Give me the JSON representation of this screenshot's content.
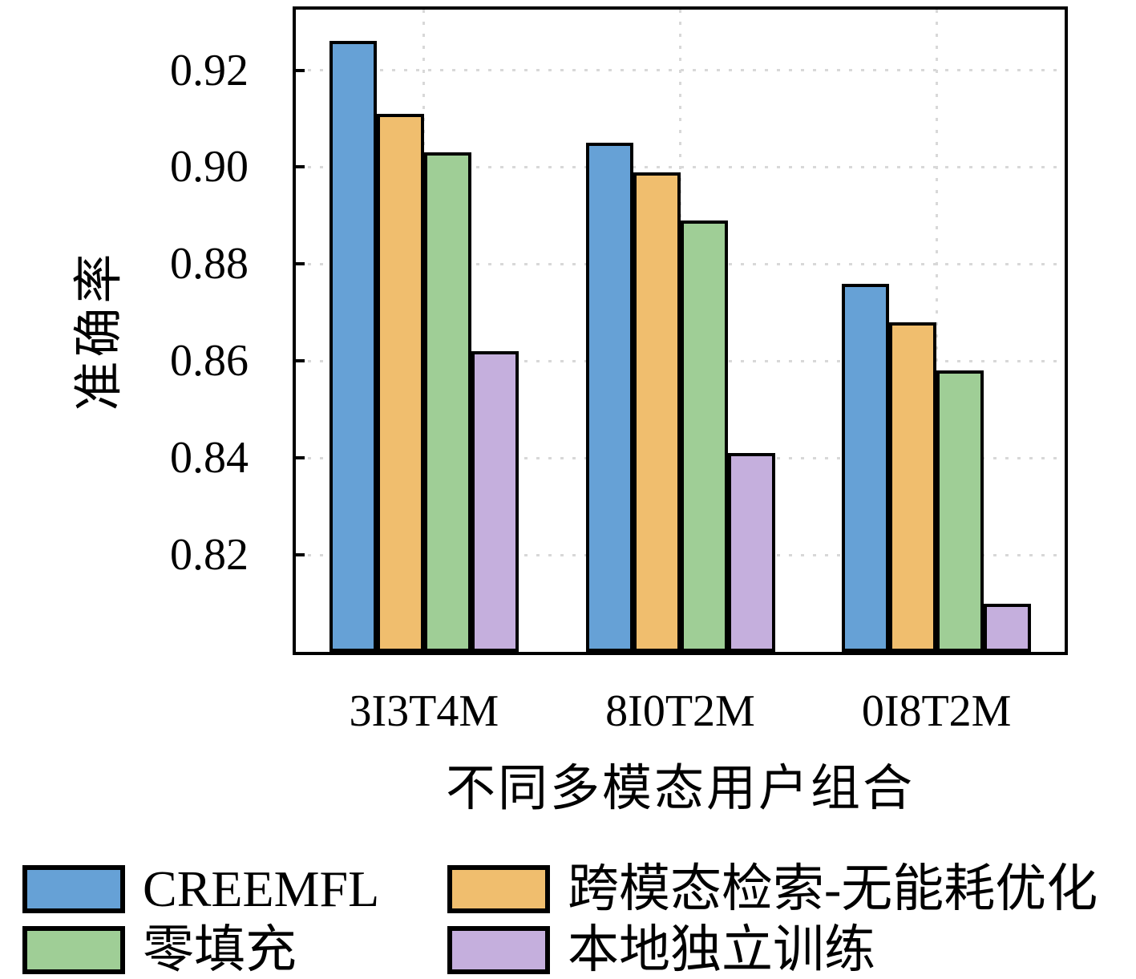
{
  "chart_data": {
    "type": "bar",
    "title": "",
    "xlabel": "不同多模态用户组合",
    "ylabel": "准确率",
    "categories": [
      "3I3T4M",
      "8I0T2M",
      "0I8T2M"
    ],
    "series": [
      {
        "name": "CREEMFL",
        "color": "#66a1d6",
        "values": [
          0.926,
          0.905,
          0.876
        ]
      },
      {
        "name": "跨模态检索-无能耗优化",
        "color": "#f0be6e",
        "values": [
          0.911,
          0.899,
          0.868
        ]
      },
      {
        "name": "零填充",
        "color": "#9fce96",
        "values": [
          0.903,
          0.889,
          0.858
        ]
      },
      {
        "name": "本地独立训练",
        "color": "#c5afdd",
        "values": [
          0.862,
          0.841,
          0.81
        ]
      }
    ],
    "ylim": [
      0.8,
      0.9325
    ],
    "yticks": [
      0.82,
      0.84,
      0.86,
      0.88,
      0.9,
      0.92
    ],
    "ytick_labels": [
      "0.82",
      "0.84",
      "0.86",
      "0.88",
      "0.90",
      "0.92"
    ],
    "grid": "dotted",
    "grid_color": "#d8d8d8",
    "bar_edge_color": "#000000",
    "legend_position": "bottom-left, 2 columns"
  }
}
